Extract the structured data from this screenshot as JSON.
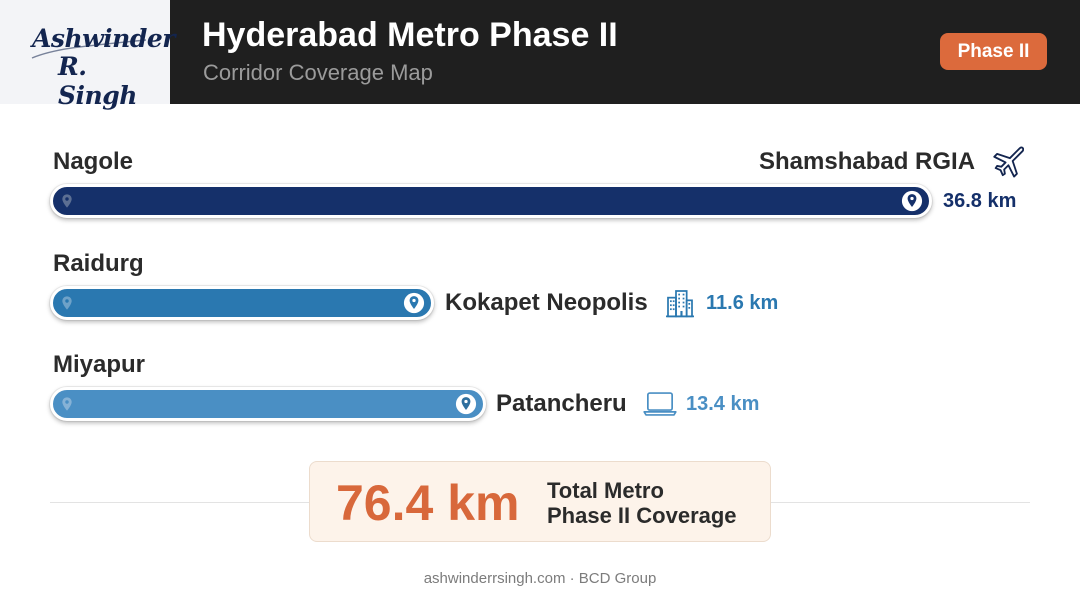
{
  "header": {
    "logo_line1": "Ashwinder",
    "logo_line2": "R. Singh",
    "title": "Hyderabad Metro Phase II",
    "subtitle": "Corridor Coverage Map",
    "badge": "Phase II"
  },
  "corridors": [
    {
      "from": "Nagole",
      "to": "Shamshabad RGIA",
      "distance": "36.8 km",
      "distance_km": 36.8,
      "color": "#15306a",
      "km_color": "#15306a",
      "icon": "airplane-icon"
    },
    {
      "from": "Raidurg",
      "to": "Kokapet Neopolis",
      "distance": "11.6 km",
      "distance_km": 11.6,
      "color": "#2a78b0",
      "km_color": "#2a78b0",
      "icon": "building-icon"
    },
    {
      "from": "Miyapur",
      "to": "Patancheru",
      "distance": "13.4 km",
      "distance_km": 13.4,
      "color": "#4a8fc4",
      "km_color": "#4a8fc4",
      "icon": "laptop-icon"
    }
  ],
  "total": {
    "value": "76.4 km",
    "label_line1": "Total Metro",
    "label_line2": "Phase II Coverage",
    "color": "#d8683b"
  },
  "footer": "ashwinderrsingh.com · BCD Group"
}
